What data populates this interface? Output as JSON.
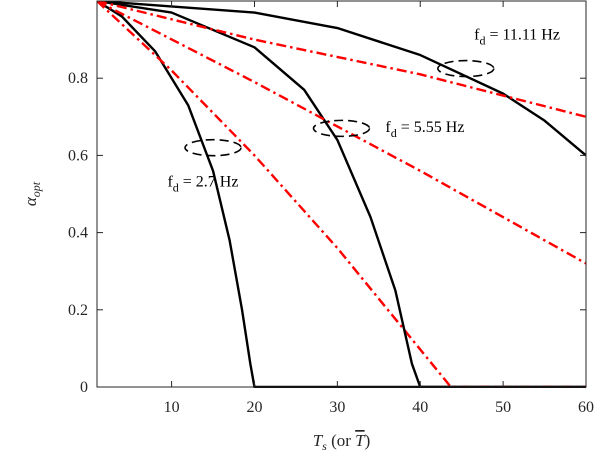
{
  "chart_data": {
    "type": "line",
    "title": "",
    "xlabel": "T_s (or T̄)",
    "xlabel_parts": {
      "var": "T",
      "sub": "s",
      "mid": " (or ",
      "var2": "T",
      "end": ")"
    },
    "ylabel": "α_opt",
    "ylabel_parts": {
      "var": "α",
      "sub": "opt"
    },
    "xlim": [
      1,
      60
    ],
    "ylim": [
      0,
      1
    ],
    "x_ticks": [
      10,
      20,
      30,
      40,
      50,
      60
    ],
    "y_ticks": [
      0,
      0.2,
      0.4,
      0.6,
      0.8
    ],
    "x_tick_labels": [
      "10",
      "20",
      "30",
      "40",
      "50",
      "60"
    ],
    "y_tick_labels": [
      "0",
      "0.2",
      "0.4",
      "0.6",
      "0.8"
    ],
    "grid": false,
    "legend": "none",
    "colors": {
      "solid": "#000000",
      "dashdot": "#ff0000"
    },
    "series": [
      {
        "style": "solid",
        "color": "#000000",
        "x": [
          1,
          4,
          8,
          12,
          15,
          17,
          18.5,
          19.5,
          20,
          60
        ],
        "y": [
          1.0,
          0.96,
          0.87,
          0.73,
          0.56,
          0.38,
          0.2,
          0.06,
          0.0,
          0.0
        ]
      },
      {
        "style": "dashdot",
        "color": "#ff0000",
        "x": [
          1,
          10,
          20,
          30,
          43.7,
          60
        ],
        "y": [
          1.0,
          0.82,
          0.6,
          0.36,
          0.0,
          0.0
        ]
      },
      {
        "style": "solid",
        "color": "#000000",
        "x": [
          1,
          10,
          20,
          26,
          30,
          34,
          37,
          39,
          40,
          60
        ],
        "y": [
          1.0,
          0.97,
          0.88,
          0.77,
          0.64,
          0.44,
          0.25,
          0.06,
          0.0,
          0.0
        ]
      },
      {
        "style": "dashdot",
        "color": "#ff0000",
        "x": [
          1,
          20,
          40,
          60
        ],
        "y": [
          1.0,
          0.79,
          0.56,
          0.32
        ]
      },
      {
        "style": "solid",
        "color": "#000000",
        "x": [
          1,
          20,
          30,
          40,
          45,
          50,
          55,
          60
        ],
        "y": [
          1.0,
          0.97,
          0.93,
          0.86,
          0.81,
          0.76,
          0.69,
          0.6
        ]
      },
      {
        "style": "dashdot",
        "color": "#ff0000",
        "x": [
          1,
          20,
          40,
          60
        ],
        "y": [
          1.0,
          0.9,
          0.81,
          0.7
        ]
      }
    ],
    "annotations": [
      {
        "text_main": "f",
        "text_sub": "d",
        "text_rest": " = 2.7 Hz",
        "label_x": 9.5,
        "label_y": 0.52,
        "ellipse_x": 15.0,
        "ellipse_y": 0.62
      },
      {
        "text_main": "f",
        "text_sub": "d",
        "text_rest": " = 5.55 Hz",
        "label_x": 35.8,
        "label_y": 0.66,
        "ellipse_x": 30.5,
        "ellipse_y": 0.67
      },
      {
        "text_main": "f",
        "text_sub": "d",
        "text_rest": " = 11.11 Hz",
        "label_x": 46.5,
        "label_y": 0.9,
        "ellipse_x": 45.5,
        "ellipse_y": 0.825
      }
    ]
  }
}
